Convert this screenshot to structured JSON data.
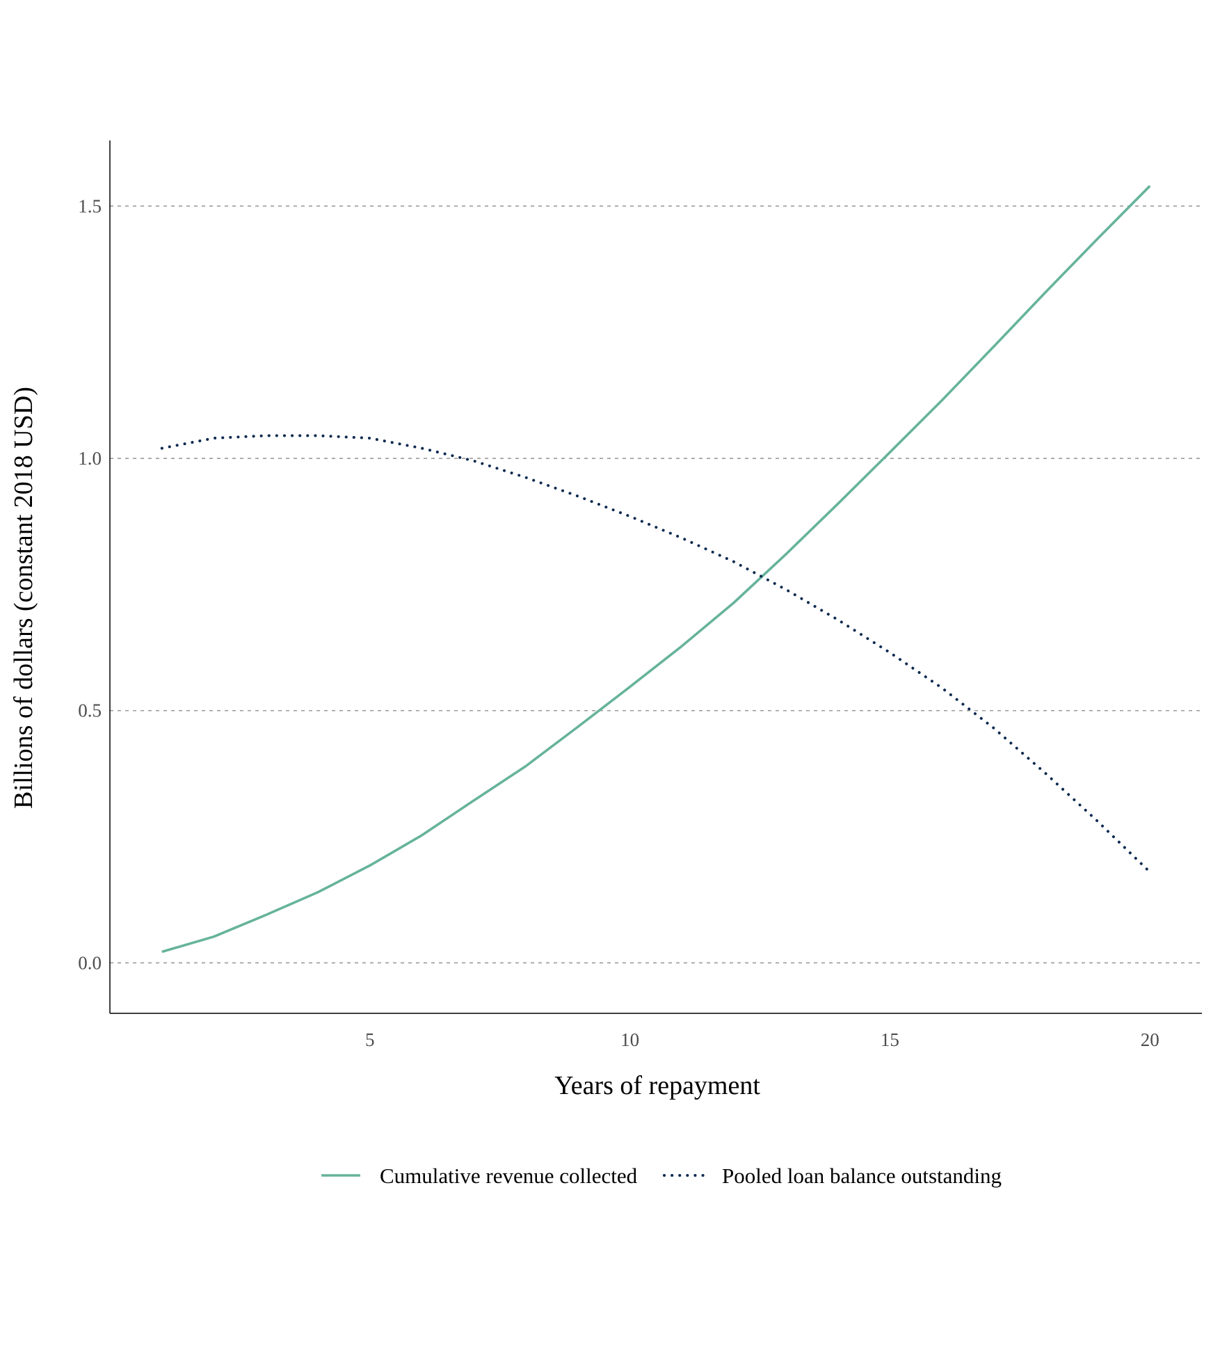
{
  "chart_data": {
    "type": "line",
    "title": "",
    "xlabel": "Years of repayment",
    "ylabel": "Billions of dollars (constant 2018 USD)",
    "xlim": [
      0,
      21
    ],
    "ylim": [
      -0.1,
      1.63
    ],
    "x_ticks": [
      5,
      10,
      15,
      20
    ],
    "x_tick_labels": [
      "5",
      "10",
      "15",
      "20"
    ],
    "y_ticks": [
      0,
      0.5,
      1,
      1.5
    ],
    "y_tick_labels": [
      "0.0",
      "0.5",
      "1.0",
      "1.5"
    ],
    "grid": "horizontal dashed",
    "legend_position": "bottom",
    "x": [
      1,
      2,
      3,
      4,
      5,
      6,
      7,
      8,
      9,
      10,
      11,
      12,
      13,
      14,
      15,
      16,
      17,
      18,
      19,
      20
    ],
    "series": [
      {
        "name": "Cumulative revenue collected",
        "style": "solid",
        "color": "#66b39b",
        "values": [
          0.022,
          0.052,
          0.095,
          0.14,
          0.193,
          0.253,
          0.322,
          0.39,
          0.468,
          0.547,
          0.628,
          0.714,
          0.81,
          0.91,
          1.012,
          1.115,
          1.222,
          1.33,
          1.436,
          1.54
        ]
      },
      {
        "name": "Pooled loan balance outstanding",
        "style": "dotted",
        "color": "#0d2a50",
        "values": [
          1.02,
          1.04,
          1.045,
          1.045,
          1.04,
          1.02,
          0.995,
          0.962,
          0.925,
          0.885,
          0.842,
          0.795,
          0.74,
          0.68,
          0.615,
          0.545,
          0.465,
          0.375,
          0.28,
          0.18
        ]
      }
    ]
  }
}
